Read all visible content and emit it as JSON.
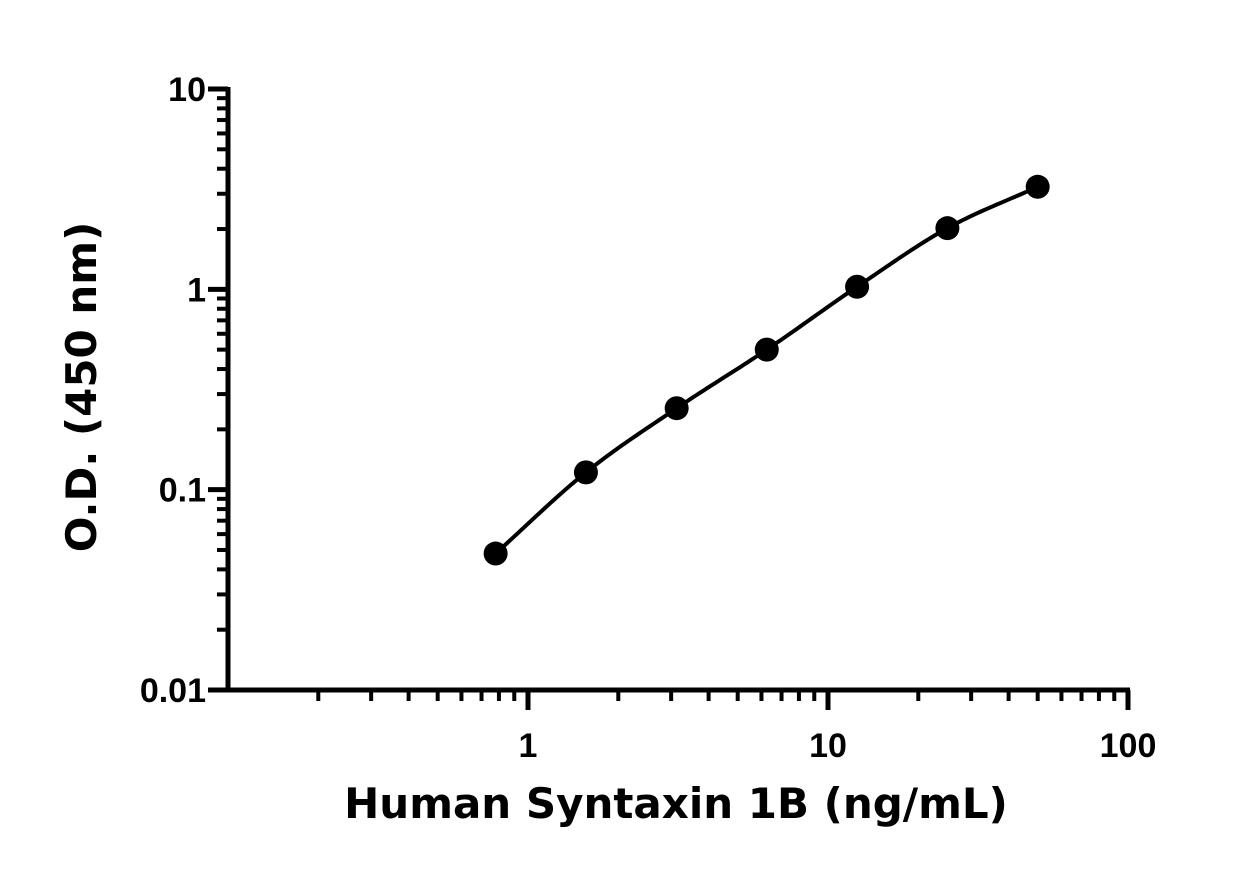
{
  "chart_data": {
    "type": "scatter",
    "title": "",
    "xlabel": "Human Syntaxin 1B (ng/mL)",
    "ylabel": "O.D. (450 nm)",
    "xscale": "log",
    "yscale": "log",
    "xlim": [
      0.1,
      100
    ],
    "ylim": [
      0.01,
      10
    ],
    "x_ticks": [
      1,
      10,
      100
    ],
    "x_tick_labels": [
      "1",
      "10",
      "100"
    ],
    "y_ticks": [
      0.01,
      0.1,
      1,
      10
    ],
    "y_tick_labels": [
      "0.01",
      "0.1",
      "1",
      "10"
    ],
    "grid": false,
    "legend": "none",
    "series": [
      {
        "x": [
          0.78,
          1.56,
          3.13,
          6.25,
          12.5,
          25,
          50
        ],
        "y": [
          0.048,
          0.122,
          0.255,
          0.5,
          1.03,
          2.02,
          3.25
        ],
        "color": "#000000",
        "marker": "circle",
        "fit_curve": true
      }
    ]
  }
}
